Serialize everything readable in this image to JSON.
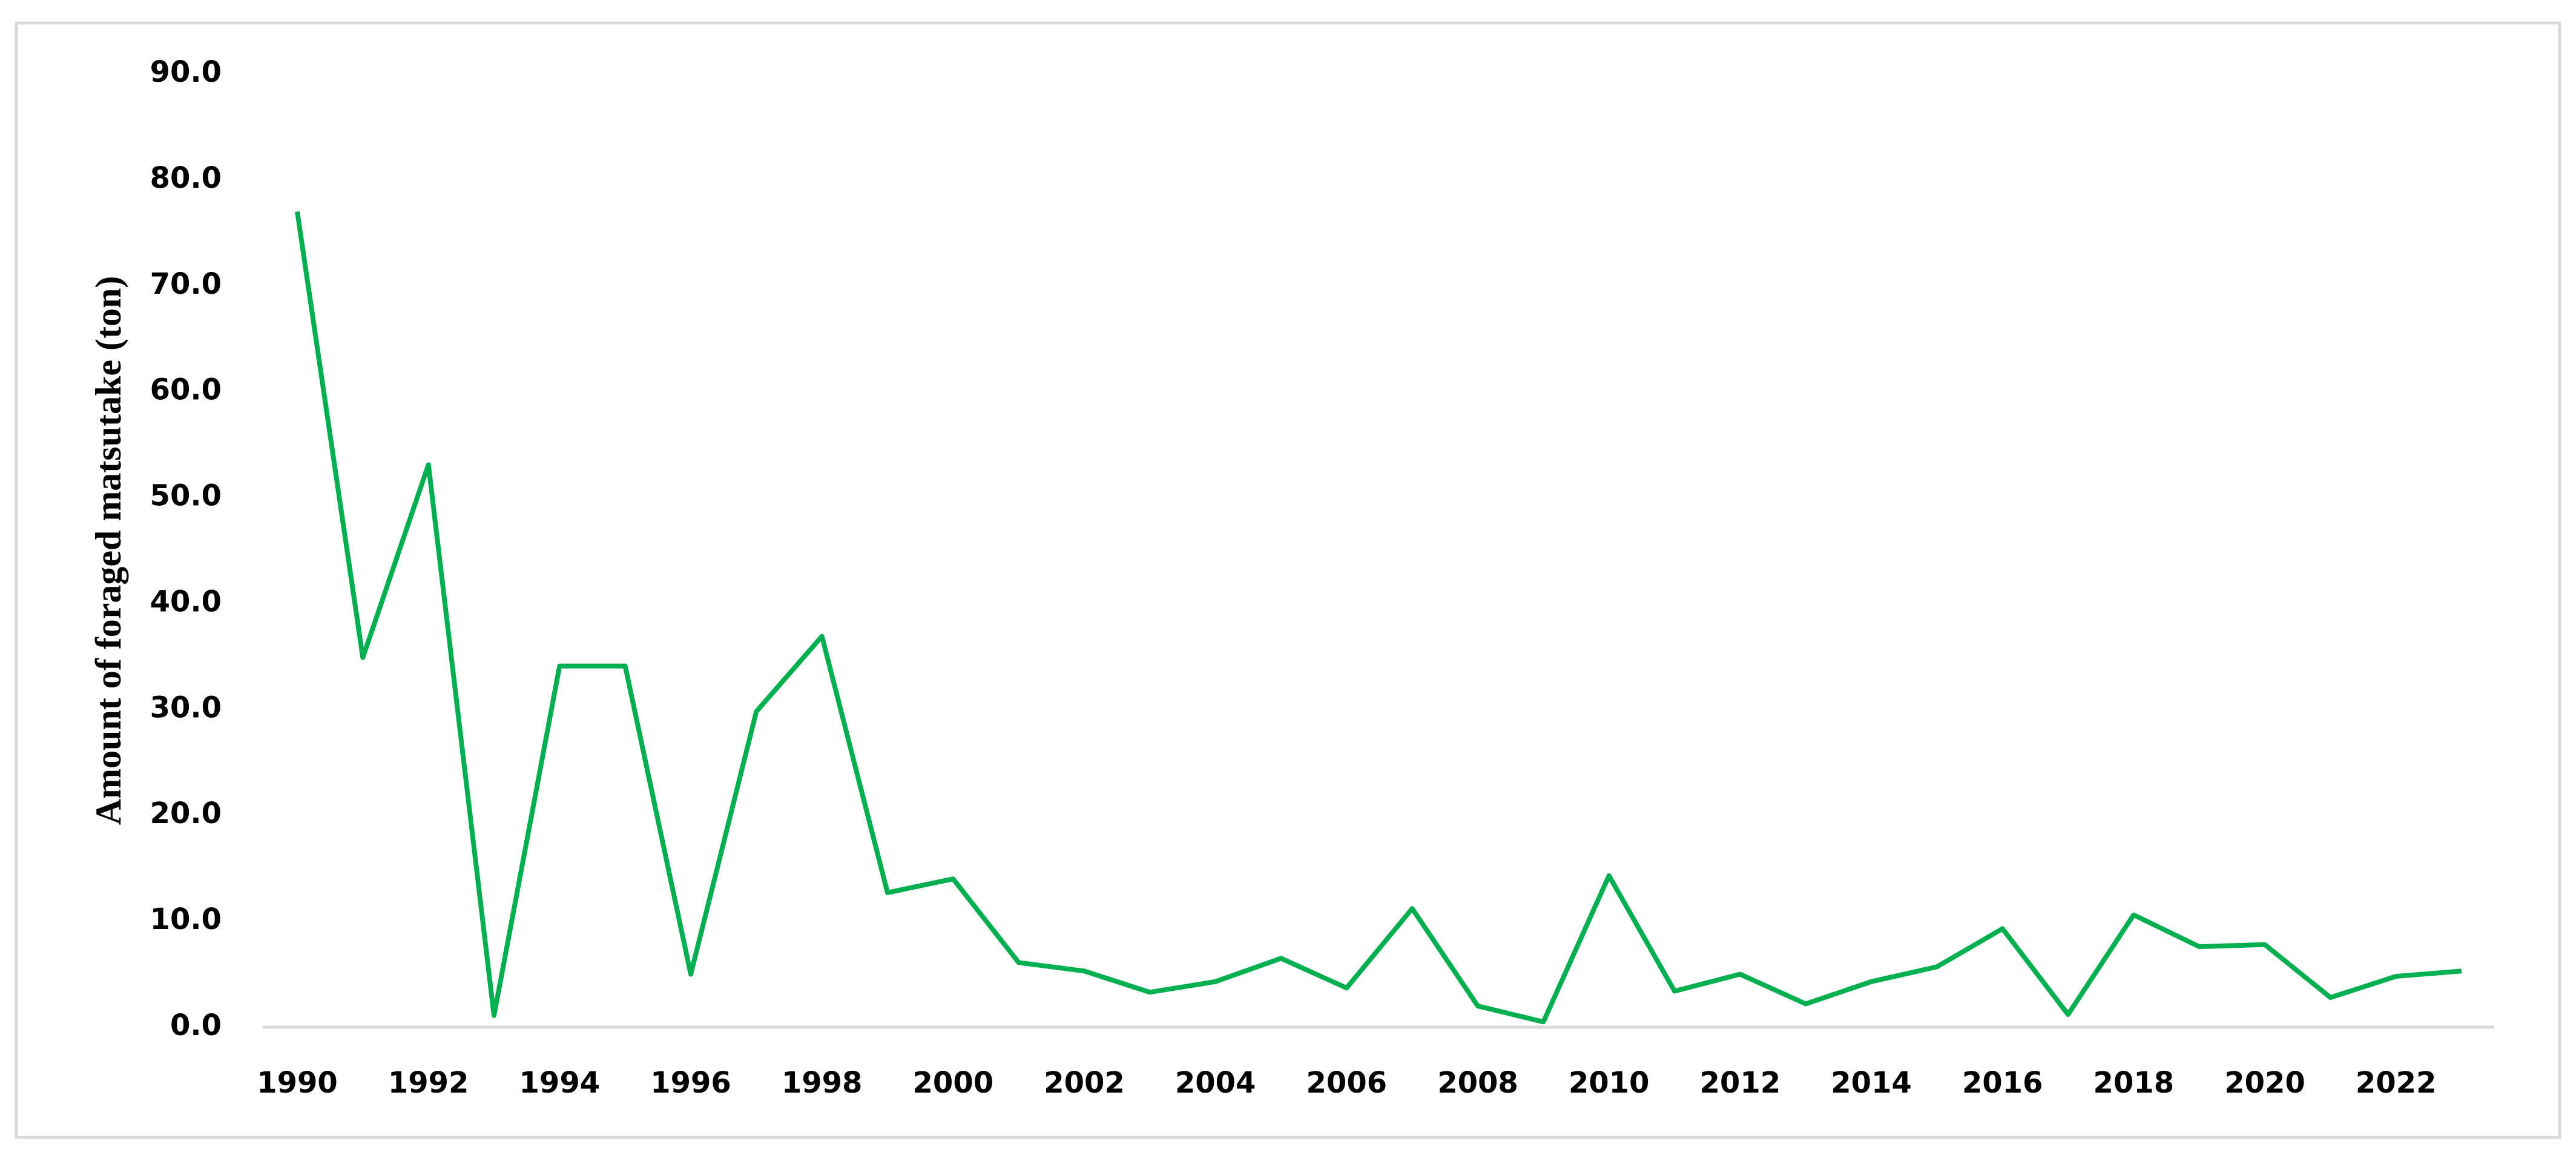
{
  "chart_data": {
    "type": "line",
    "y_label": "Amount of foraged matsutake (ton)",
    "categories": [
      "1990",
      null,
      "1992",
      null,
      "1994",
      null,
      "1996",
      null,
      "1998",
      null,
      "2000",
      null,
      "2002",
      null,
      "2004",
      null,
      "2006",
      null,
      "2008",
      null,
      "2010",
      null,
      "2012",
      null,
      "2014",
      null,
      "2016",
      null,
      "2018",
      null,
      "2020",
      null,
      "2022",
      null
    ],
    "values": [
      77.0,
      34.9,
      53.1,
      1.1,
      34.1,
      34.1,
      5.0,
      29.8,
      36.9,
      12.7,
      14.0,
      6.1,
      5.3,
      3.3,
      4.3,
      6.5,
      3.7,
      11.2,
      2.0,
      0.5,
      14.3,
      3.4,
      5.0,
      2.2,
      4.3,
      5.7,
      9.3,
      1.2,
      10.6,
      7.6,
      7.8,
      2.8,
      4.8,
      5.3
    ],
    "color": "#00b050",
    "ylim": [
      0,
      90
    ],
    "yticks": [
      {
        "value": 0,
        "label": "0.0"
      },
      {
        "value": 10,
        "label": "10.0"
      },
      {
        "value": 20,
        "label": "20.0"
      },
      {
        "value": 30,
        "label": "30.0"
      },
      {
        "value": 40,
        "label": "40.0"
      },
      {
        "value": 50,
        "label": "50.0"
      },
      {
        "value": 60,
        "label": "60.0"
      },
      {
        "value": 70,
        "label": "70.0"
      },
      {
        "value": 80,
        "label": "80.0"
      },
      {
        "value": 90,
        "label": "90.0"
      }
    ],
    "grid": false
  }
}
